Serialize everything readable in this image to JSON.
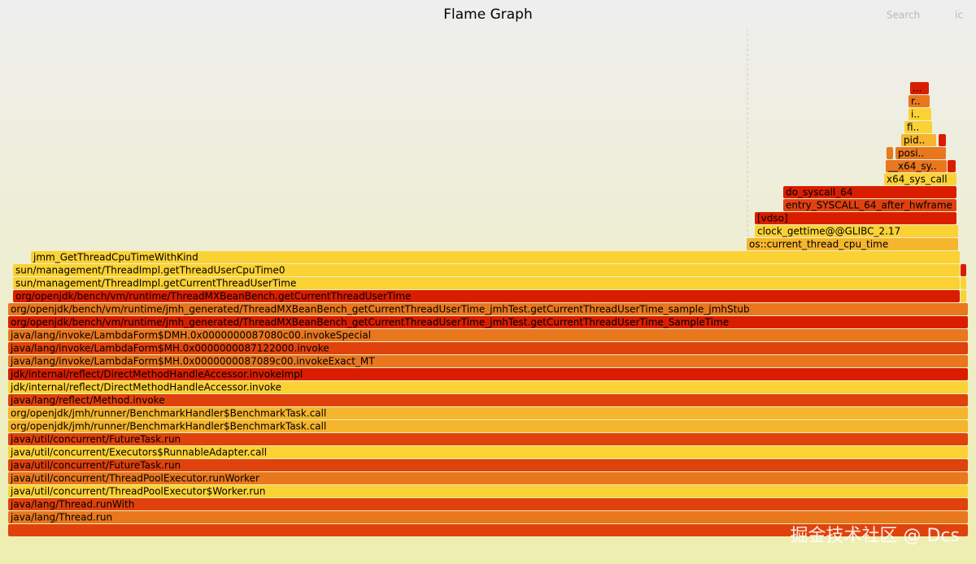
{
  "title": "Flame Graph",
  "search": "Search",
  "ic": "ic",
  "watermark": "掘金技术社区 @ Dcs",
  "frames": [
    "java/lang/Thread.run",
    "java/lang/Thread.runWith",
    "java/util/concurrent/ThreadPoolExecutor$Worker.run",
    "java/util/concurrent/ThreadPoolExecutor.runWorker",
    "java/util/concurrent/FutureTask.run",
    "java/util/concurrent/Executors$RunnableAdapter.call",
    "java/util/concurrent/FutureTask.run",
    "org/openjdk/jmh/runner/BenchmarkHandler$BenchmarkTask.call",
    "org/openjdk/jmh/runner/BenchmarkHandler$BenchmarkTask.call",
    "java/lang/reflect/Method.invoke",
    "jdk/internal/reflect/DirectMethodHandleAccessor.invoke",
    "jdk/internal/reflect/DirectMethodHandleAccessor.invokeImpl",
    "java/lang/invoke/LambdaForm$MH.0x0000000087089c00.invokeExact_MT",
    "java/lang/invoke/LambdaForm$MH.0x0000000087122000.invoke",
    "java/lang/invoke/LambdaForm$DMH.0x0000000087080c00.invokeSpecial",
    "org/openjdk/bench/vm/runtime/jmh_generated/ThreadMXBeanBench_getCurrentThreadUserTime_jmhTest.getCurrentThreadUserTime_SampleTime",
    "org/openjdk/bench/vm/runtime/jmh_generated/ThreadMXBeanBench_getCurrentThreadUserTime_jmhTest.getCurrentThreadUserTime_sample_jmhStub",
    "org/openjdk/bench/vm/runtime/ThreadMXBeanBench.getCurrentThreadUserTime",
    "sun/management/ThreadImpl.getCurrentThreadUserTime",
    "sun/management/ThreadImpl.getThreadUserCpuTime0",
    "jmm_GetThreadCpuTimeWithKind",
    "os::current_thread_cpu_time",
    "clock_gettime@@GLIBC_2.17",
    "[vdso]",
    "entry_SYSCALL_64_after_hwframe",
    "do_syscall_64",
    "x64_sys_call",
    "__x64_sy..",
    "posi..",
    "pid..",
    "fi..",
    "i..",
    "r..",
    "..."
  ]
}
